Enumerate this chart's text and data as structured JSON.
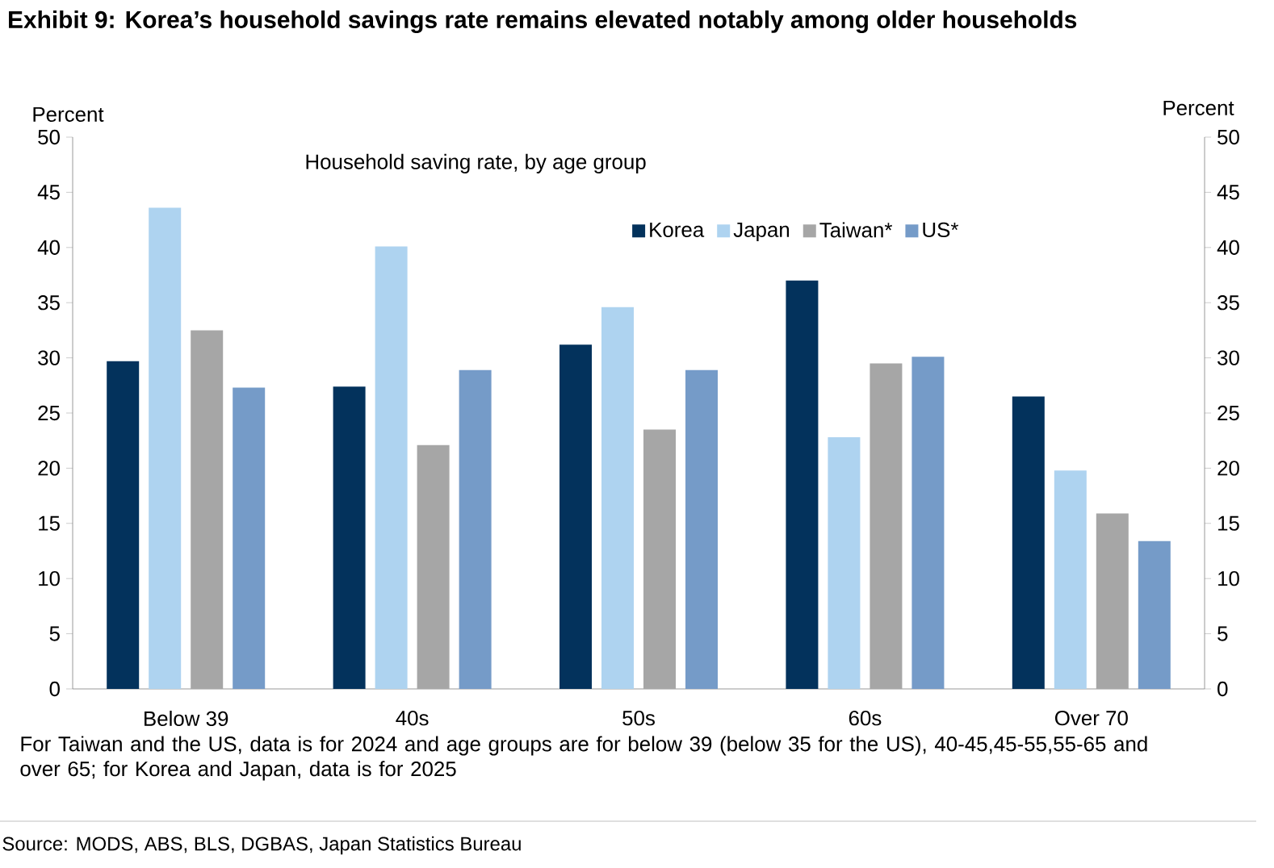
{
  "chart_data": {
    "type": "bar",
    "title": "Exhibit 9: Korea’s household savings rate remains elevated notably among older households",
    "subtitle": "Household saving rate, by age group",
    "ylabel": "Percent",
    "y2label": "Percent",
    "categories": [
      "Below 39",
      "40s",
      "50s",
      "60s",
      "Over 70"
    ],
    "series": [
      {
        "name": "Korea",
        "color": "#03325c",
        "values": [
          29.7,
          27.4,
          31.2,
          37.0,
          26.5
        ]
      },
      {
        "name": "Japan",
        "color": "#aed3f0",
        "values": [
          43.6,
          40.1,
          34.6,
          22.8,
          19.8
        ]
      },
      {
        "name": "Taiwan*",
        "color": "#a6a6a6",
        "values": [
          32.5,
          22.1,
          23.5,
          29.5,
          15.9
        ]
      },
      {
        "name": "US*",
        "color": "#759bc8",
        "values": [
          27.3,
          28.9,
          28.9,
          30.1,
          13.4
        ]
      }
    ],
    "ylim": [
      0,
      50
    ],
    "yticks": [
      0,
      5,
      10,
      15,
      20,
      25,
      30,
      35,
      40,
      45,
      50
    ],
    "y2lim": [
      0,
      50
    ],
    "y2ticks": [
      0,
      5,
      10,
      15,
      20,
      25,
      30,
      35,
      40,
      45,
      50
    ],
    "legend": "top",
    "annotations": [
      "For Taiwan and the US, data is for 2024 and age groups are for below 39 (below 35 for the US), 40-45,45-55,55-65 and over 65; for Korea and Japan, data is for 2025",
      "Source: MODS, ABS, BLS, DGBAS, Japan Statistics Bureau"
    ]
  }
}
